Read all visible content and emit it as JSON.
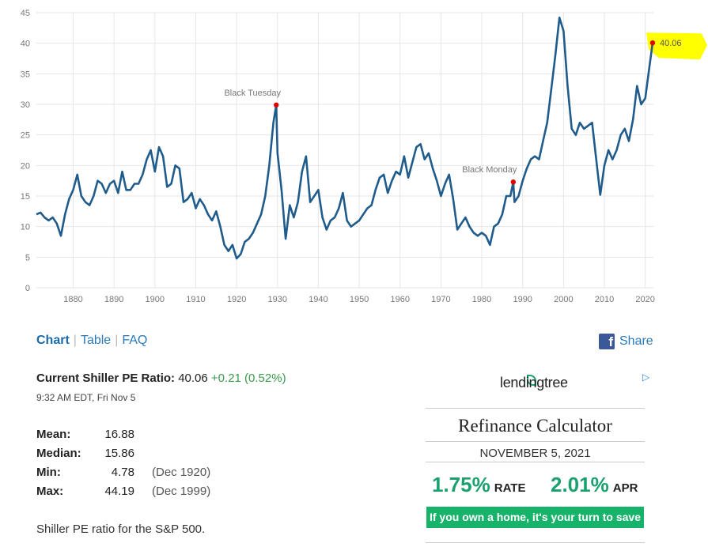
{
  "chart_data": {
    "type": "line",
    "ylim": [
      0,
      45
    ],
    "xlim": [
      1871,
      2022
    ],
    "yticks": [
      "0",
      "5",
      "10",
      "15",
      "20",
      "25",
      "30",
      "35",
      "40",
      "45"
    ],
    "xticks": [
      "1880",
      "1890",
      "1900",
      "1910",
      "1920",
      "1930",
      "1940",
      "1950",
      "1960",
      "1970",
      "1980",
      "1990",
      "2000",
      "2010",
      "2020"
    ],
    "grid": true,
    "line_color": "#1f5c8c",
    "series": [
      {
        "x": [
          1871,
          1872,
          1873,
          1874,
          1875,
          1876,
          1877,
          1878,
          1879,
          1880,
          1881,
          1882,
          1883,
          1884,
          1885,
          1886,
          1887,
          1888,
          1889,
          1890,
          1891,
          1892,
          1893,
          1894,
          1895,
          1896,
          1897,
          1898,
          1899,
          1900,
          1901,
          1902,
          1903,
          1904,
          1905,
          1906,
          1907,
          1908,
          1909,
          1910,
          1911,
          1912,
          1913,
          1914,
          1915,
          1916,
          1917,
          1918,
          1919,
          1920,
          1921,
          1922,
          1923,
          1924,
          1925,
          1926,
          1927,
          1928,
          1929,
          1929.7,
          1930,
          1931,
          1932,
          1933,
          1934,
          1935,
          1936,
          1937,
          1938,
          1939,
          1940,
          1941,
          1942,
          1943,
          1944,
          1945,
          1946,
          1947,
          1948,
          1949,
          1950,
          1951,
          1952,
          1953,
          1954,
          1955,
          1956,
          1957,
          1958,
          1959,
          1960,
          1961,
          1962,
          1963,
          1964,
          1965,
          1966,
          1967,
          1968,
          1969,
          1970,
          1971,
          1972,
          1973,
          1974,
          1975,
          1976,
          1977,
          1978,
          1979,
          1980,
          1981,
          1982,
          1983,
          1984,
          1985,
          1986,
          1987,
          1987.7,
          1988,
          1989,
          1990,
          1991,
          1992,
          1993,
          1994,
          1995,
          1996,
          1997,
          1998,
          1999,
          2000,
          2001,
          2002,
          2003,
          2004,
          2005,
          2006,
          2007,
          2008,
          2009,
          2010,
          2011,
          2012,
          2013,
          2014,
          2015,
          2016,
          2017,
          2018,
          2019,
          2020,
          2021,
          2021.8
        ],
        "y": [
          12.0,
          12.3,
          11.5,
          11.0,
          11.5,
          10.5,
          8.5,
          12.0,
          14.5,
          16.0,
          18.5,
          15.0,
          14.0,
          13.5,
          15.0,
          17.5,
          17.0,
          15.5,
          17.0,
          17.5,
          15.5,
          19.0,
          16.0,
          16.0,
          17.0,
          17.0,
          18.5,
          21.0,
          22.5,
          19.0,
          23.0,
          21.5,
          16.5,
          17.0,
          20.0,
          19.5,
          14.0,
          14.5,
          15.5,
          13.0,
          14.5,
          13.5,
          12.0,
          11.0,
          12.5,
          10.0,
          7.0,
          6.0,
          7.0,
          4.78,
          5.5,
          7.5,
          8.0,
          9.0,
          10.5,
          12.0,
          15.0,
          20.0,
          27.0,
          29.9,
          22.0,
          16.0,
          8.0,
          13.5,
          11.5,
          14.0,
          19.0,
          21.5,
          14.0,
          15.0,
          16.0,
          11.5,
          9.5,
          11.0,
          11.5,
          13.0,
          15.5,
          11.0,
          10.0,
          10.5,
          11.0,
          12.0,
          13.0,
          13.5,
          16.0,
          18.0,
          18.5,
          15.5,
          17.5,
          19.0,
          18.5,
          21.5,
          18.0,
          20.5,
          23.0,
          23.5,
          21.0,
          22.0,
          19.5,
          17.5,
          15.0,
          17.0,
          18.5,
          14.5,
          9.5,
          10.5,
          11.5,
          10.0,
          9.0,
          8.5,
          9.0,
          8.5,
          7.0,
          10.0,
          10.5,
          12.0,
          15.0,
          15.0,
          17.3,
          14.0,
          15.0,
          17.5,
          19.5,
          21.0,
          21.5,
          21.0,
          24.0,
          27.0,
          32.5,
          38.0,
          44.19,
          42.0,
          33.0,
          26.0,
          25.0,
          27.0,
          26.0,
          26.5,
          27.0,
          21.0,
          15.2,
          20.0,
          22.5,
          21.0,
          22.5,
          25.0,
          26.0,
          24.0,
          27.5,
          33.0,
          30.0,
          31.0,
          36.0,
          40.06
        ]
      }
    ],
    "annotations": [
      {
        "x": 1929.7,
        "y": 29.9,
        "label": "Black Tuesday"
      },
      {
        "x": 1987.7,
        "y": 17.3,
        "label": "Black Monday"
      }
    ],
    "current_point": {
      "x": 2021.8,
      "y": 40.06,
      "label": "40.06"
    }
  },
  "tabs": [
    {
      "label": "Chart"
    },
    {
      "label": "Table"
    },
    {
      "label": "FAQ"
    }
  ],
  "share_label": "Share",
  "current": {
    "label": "Current Shiller PE Ratio:",
    "value": "40.06",
    "change": "+0.21 (0.52%)",
    "timestamp": "9:32 AM EDT, Fri Nov 5"
  },
  "stats": [
    {
      "key": "Mean:",
      "value": "16.88",
      "date": ""
    },
    {
      "key": "Median:",
      "value": "15.86",
      "date": ""
    },
    {
      "key": "Min:",
      "value": "4.78",
      "date": "(Dec 1920)"
    },
    {
      "key": "Max:",
      "value": "44.19",
      "date": "(Dec 1999)"
    }
  ],
  "description": "Shiller PE ratio for the S&P 500.",
  "ad": {
    "brand": "lendingtree",
    "title": "Refinance Calculator",
    "date": "NOVEMBER 5, 2021",
    "rate_value": "1.75%",
    "rate_label": "RATE",
    "apr_value": "2.01%",
    "apr_label": "APR",
    "cta": "If you own a home, it's your turn to save",
    "adchoices_icon": "triangle-play-icon"
  },
  "colors": {
    "highlight": "#ffff00",
    "marker": "#e00000",
    "brand_green": "#1aa16e"
  }
}
